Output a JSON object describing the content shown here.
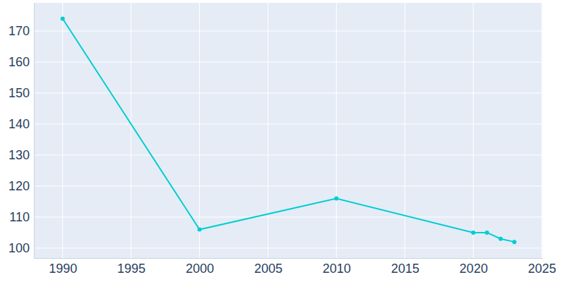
{
  "chart_data": {
    "type": "line",
    "x": [
      1990,
      2000,
      2010,
      2020,
      2021,
      2022,
      2023
    ],
    "values": [
      174,
      106,
      116,
      105,
      105,
      103,
      102
    ],
    "color": "#00ced1",
    "marker": "circle",
    "xlim": [
      1987.9,
      2025.05
    ],
    "xticks": [
      1990,
      1995,
      2000,
      2005,
      2010,
      2015,
      2020,
      2025
    ],
    "ylim": [
      96.8,
      179.1
    ],
    "yticks": [
      100,
      110,
      120,
      130,
      140,
      150,
      160,
      170
    ],
    "grid": true
  }
}
